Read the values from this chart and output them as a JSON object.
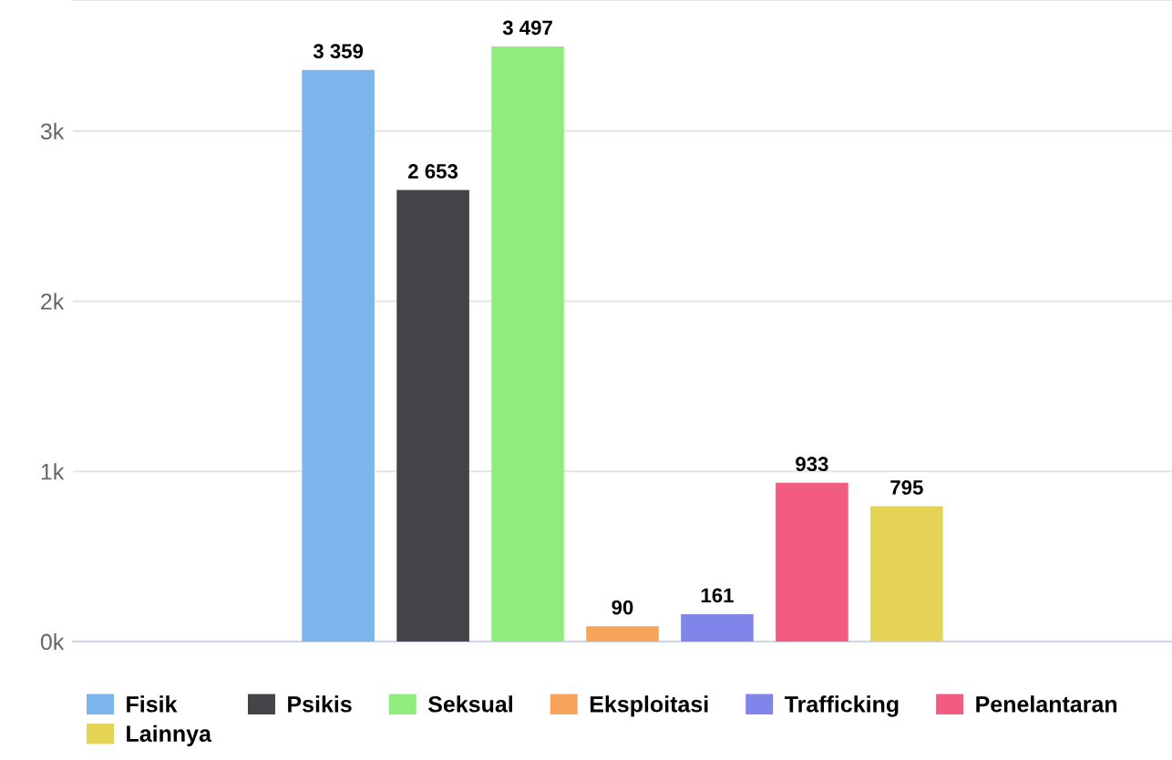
{
  "chart_data": {
    "type": "bar",
    "categories": [
      null
    ],
    "series": [
      {
        "name": "Fisik",
        "color": "#7cb5ec",
        "values": [
          3359
        ],
        "value_labels": [
          "3 359"
        ]
      },
      {
        "name": "Psikis",
        "color": "#434348",
        "values": [
          2653
        ],
        "value_labels": [
          "2 653"
        ]
      },
      {
        "name": "Seksual",
        "color": "#90ed7d",
        "values": [
          3497
        ],
        "value_labels": [
          "3 497"
        ]
      },
      {
        "name": "Eksploitasi",
        "color": "#f7a35c",
        "values": [
          90
        ],
        "value_labels": [
          "90"
        ]
      },
      {
        "name": "Trafficking",
        "color": "#8085e9",
        "values": [
          161
        ],
        "value_labels": [
          "161"
        ]
      },
      {
        "name": "Penelantaran",
        "color": "#f15c80",
        "values": [
          933
        ],
        "value_labels": [
          "933"
        ]
      },
      {
        "name": "Lainnya",
        "color": "#e4d354",
        "values": [
          795
        ],
        "value_labels": [
          "795"
        ]
      }
    ],
    "ylim": [
      0,
      3770
    ],
    "yticks": [
      {
        "value": 0,
        "label": "0k"
      },
      {
        "value": 1000,
        "label": "1k"
      },
      {
        "value": 2000,
        "label": "2k"
      },
      {
        "value": 3000,
        "label": "3k"
      }
    ],
    "grid": "y",
    "legend": "bottom"
  }
}
